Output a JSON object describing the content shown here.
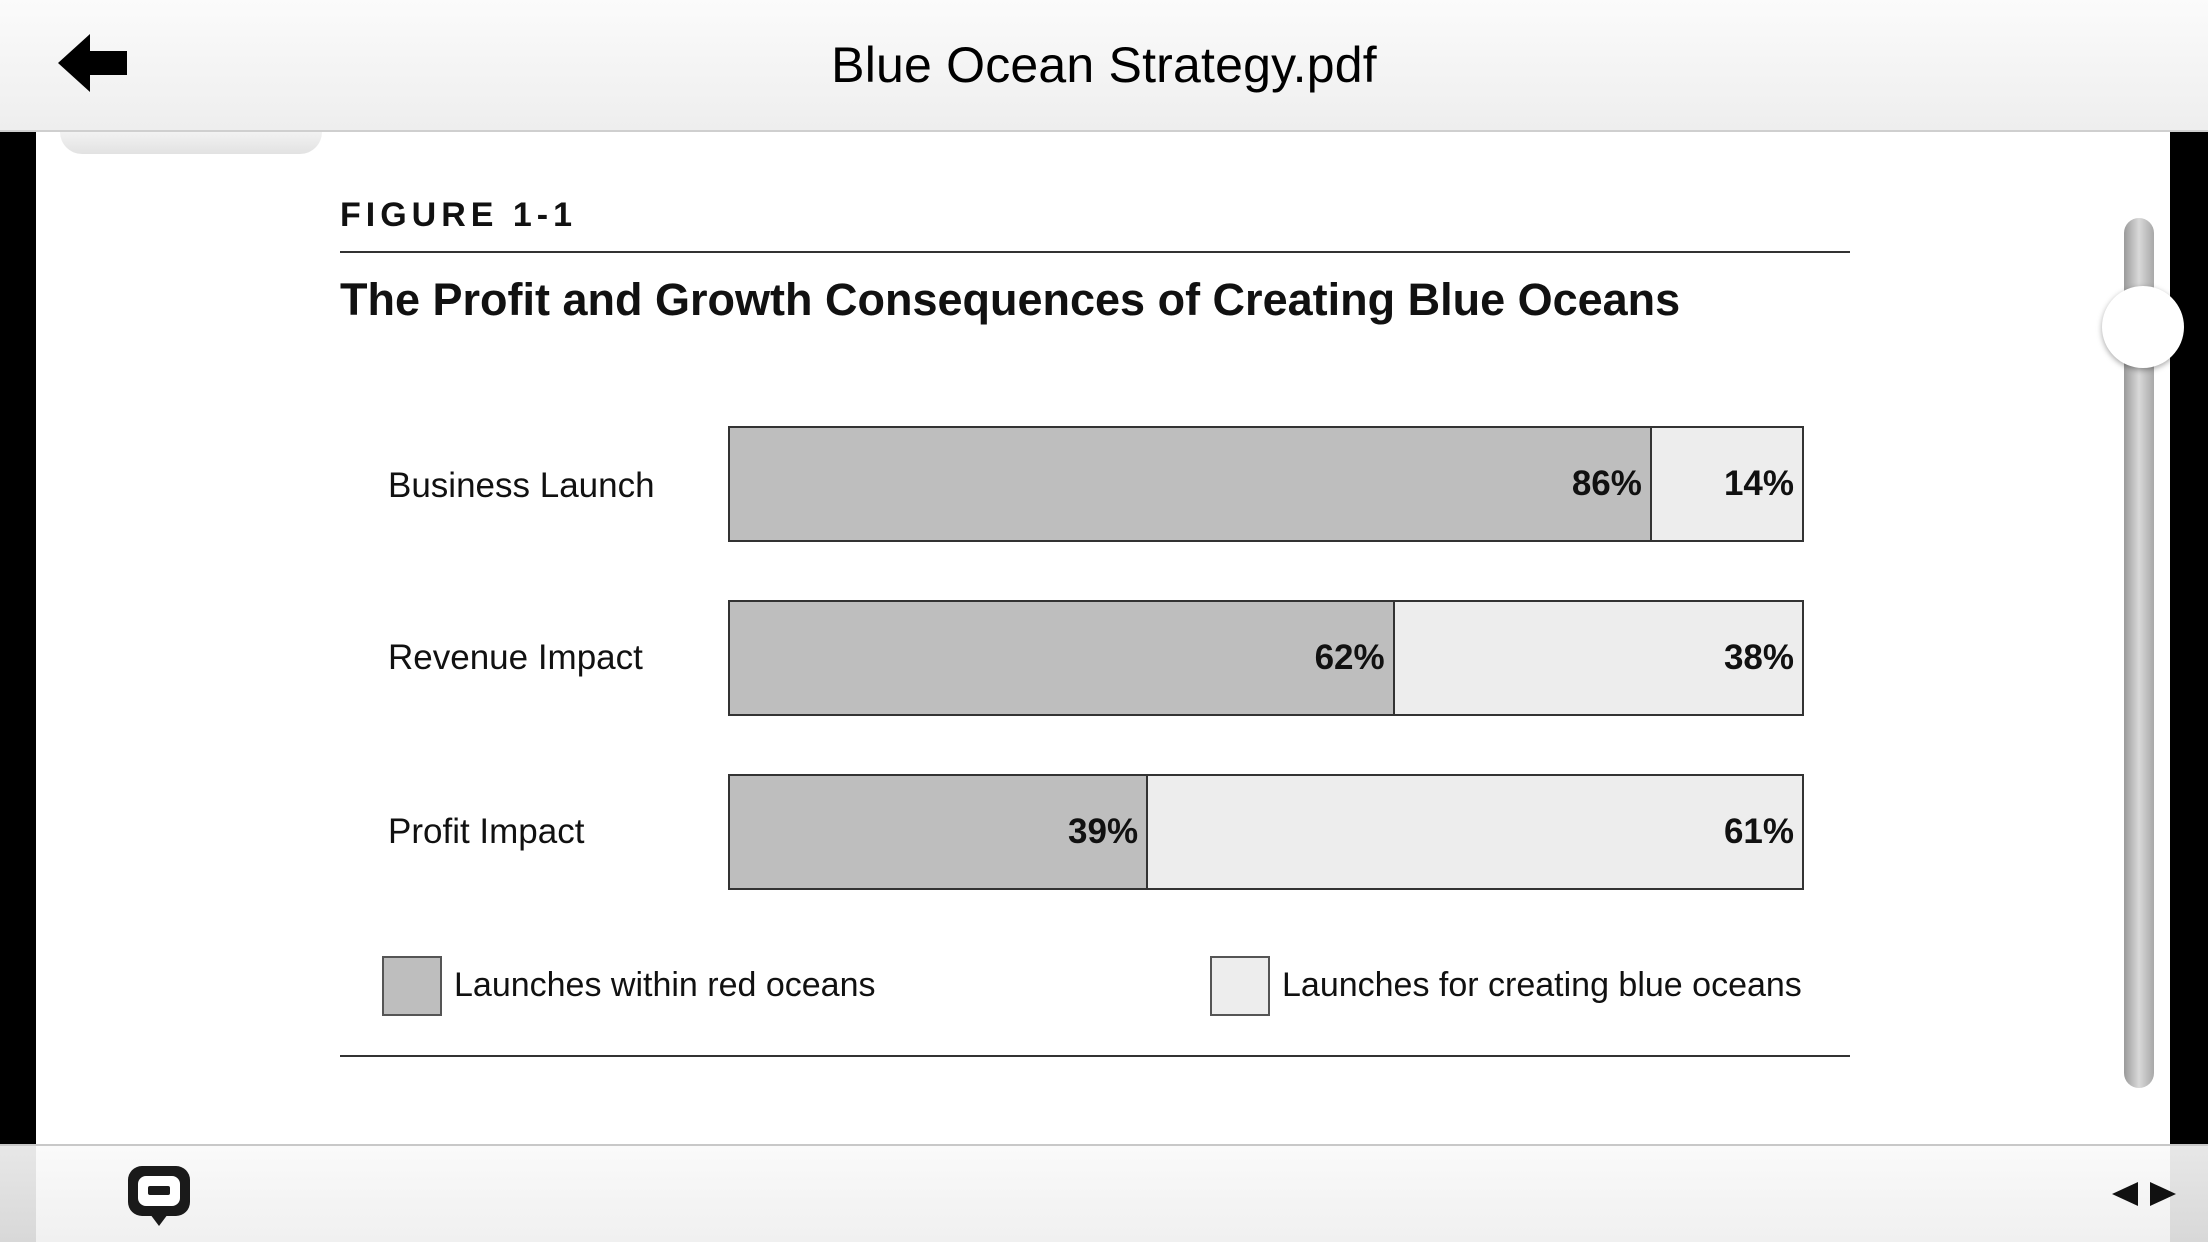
{
  "header": {
    "title": "Blue Ocean Strategy.pdf",
    "back_icon": "back-arrow-icon"
  },
  "figure": {
    "label": "FIGURE 1-1",
    "title": "The Profit and Growth Consequences of Creating Blue Oceans"
  },
  "chart_data": {
    "type": "bar",
    "orientation": "horizontal",
    "stacked": true,
    "title": "The Profit and Growth Consequences of Creating Blue Oceans",
    "categories": [
      "Business Launch",
      "Revenue Impact",
      "Profit Impact"
    ],
    "series": [
      {
        "name": "Launches within red oceans",
        "values": [
          86,
          62,
          39
        ],
        "labels": [
          "86%",
          "62%",
          "39%"
        ],
        "color": "#bebebe"
      },
      {
        "name": "Launches for creating blue oceans",
        "values": [
          14,
          38,
          61
        ],
        "labels": [
          "14%",
          "38%",
          "61%"
        ],
        "color": "#ededed"
      }
    ],
    "xlim": [
      0,
      100
    ],
    "legend": "bottom",
    "grid": false
  },
  "footer": {
    "comment_icon": "comment-icon",
    "prev_icon": "prev-page-icon",
    "next_icon": "next-page-icon"
  }
}
